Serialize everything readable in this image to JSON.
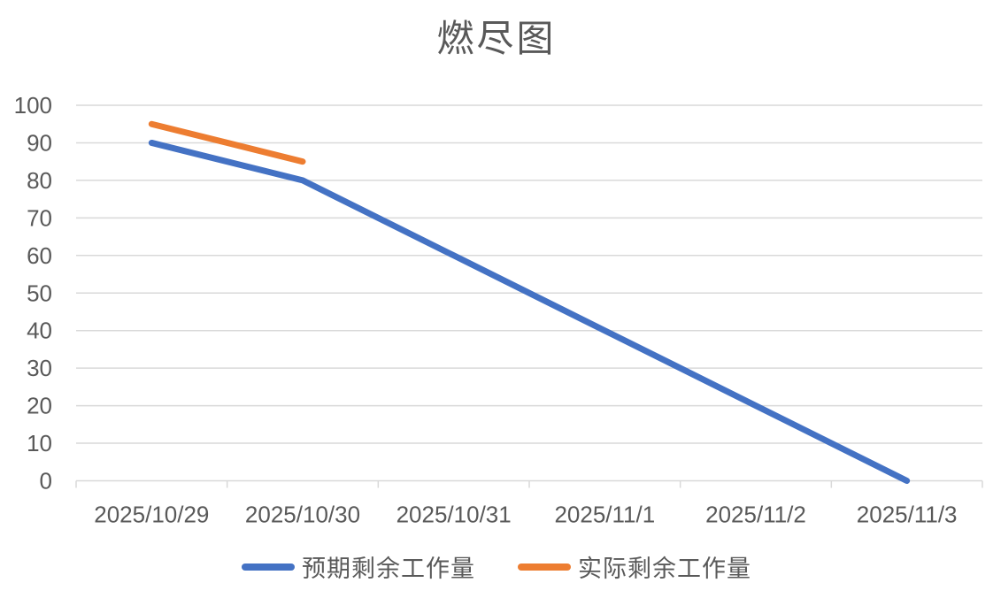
{
  "chart_data": {
    "type": "line",
    "title": "燃尽图",
    "categories": [
      "2025/10/29",
      "2025/10/30",
      "2025/10/31",
      "2025/11/1",
      "2025/11/2",
      "2025/11/3"
    ],
    "series": [
      {
        "id": "expected",
        "name": "预期剩余工作量",
        "color": "#4472C4",
        "values": [
          90,
          80,
          60,
          40,
          20,
          0
        ]
      },
      {
        "id": "actual",
        "name": "实际剩余工作量",
        "color": "#ED7D31",
        "values": [
          95,
          85,
          null,
          null,
          null,
          null
        ]
      }
    ],
    "ylim": [
      0,
      100
    ],
    "yticks": [
      0,
      10,
      20,
      30,
      40,
      50,
      60,
      70,
      80,
      90,
      100
    ],
    "grid": true,
    "legend_position": "bottom",
    "gridline_color": "#D9D9D9",
    "text_color": "#595959",
    "background_color": "#FFFFFF",
    "line_width": 7
  }
}
